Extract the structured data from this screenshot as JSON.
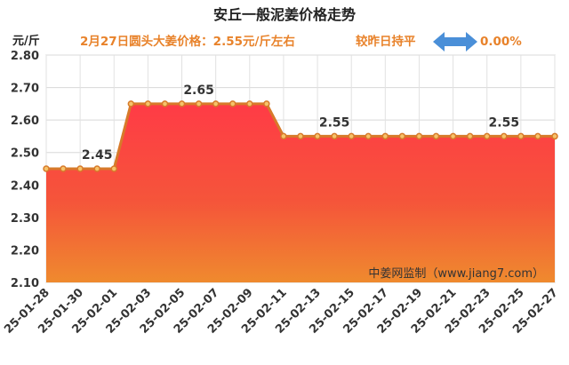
{
  "title": "安丘一般泥姜价格走势",
  "info": {
    "price_text": "2月27日圆头大姜价格：2.55元/斤左右",
    "change_text": "较昨日持平",
    "change_pct": "0.00%",
    "accent_color": "#e8822a",
    "arrow_color": "#4a8fd8",
    "arrow_icon": "left-right-arrow"
  },
  "watermark": "中姜网监制（www.jiang7.com）",
  "chart_data": {
    "type": "area",
    "title": "安丘一般泥姜价格走势",
    "ylabel": "元/斤",
    "xlabel": "",
    "ylim": [
      2.1,
      2.8
    ],
    "yticks": [
      "2.10",
      "2.20",
      "2.30",
      "2.40",
      "2.50",
      "2.60",
      "2.70",
      "2.80"
    ],
    "grid": true,
    "x": [
      "25-01-28",
      "25-01-29",
      "25-01-30",
      "25-01-31",
      "25-02-01",
      "25-02-02",
      "25-02-03",
      "25-02-04",
      "25-02-05",
      "25-02-06",
      "25-02-07",
      "25-02-08",
      "25-02-09",
      "25-02-10",
      "25-02-11",
      "25-02-12",
      "25-02-13",
      "25-02-14",
      "25-02-15",
      "25-02-16",
      "25-02-17",
      "25-02-18",
      "25-02-19",
      "25-02-20",
      "25-02-21",
      "25-02-22",
      "25-02-23",
      "25-02-24",
      "25-02-25",
      "25-02-26",
      "25-02-27"
    ],
    "xticks": [
      "25-01-28",
      "25-01-30",
      "25-02-01",
      "25-02-03",
      "25-02-05",
      "25-02-07",
      "25-02-09",
      "25-02-11",
      "25-02-13",
      "25-02-15",
      "25-02-17",
      "25-02-19",
      "25-02-21",
      "25-02-23",
      "25-02-25",
      "25-02-27"
    ],
    "values": [
      2.45,
      2.45,
      2.45,
      2.45,
      2.45,
      2.65,
      2.65,
      2.65,
      2.65,
      2.65,
      2.65,
      2.65,
      2.65,
      2.65,
      2.55,
      2.55,
      2.55,
      2.55,
      2.55,
      2.55,
      2.55,
      2.55,
      2.55,
      2.55,
      2.55,
      2.55,
      2.55,
      2.55,
      2.55,
      2.55,
      2.55
    ],
    "data_labels": [
      {
        "index": 3,
        "text": "2.45"
      },
      {
        "index": 9,
        "text": "2.65"
      },
      {
        "index": 17,
        "text": "2.55"
      },
      {
        "index": 27,
        "text": "2.55"
      }
    ],
    "series_color": "#d77a2a"
  }
}
